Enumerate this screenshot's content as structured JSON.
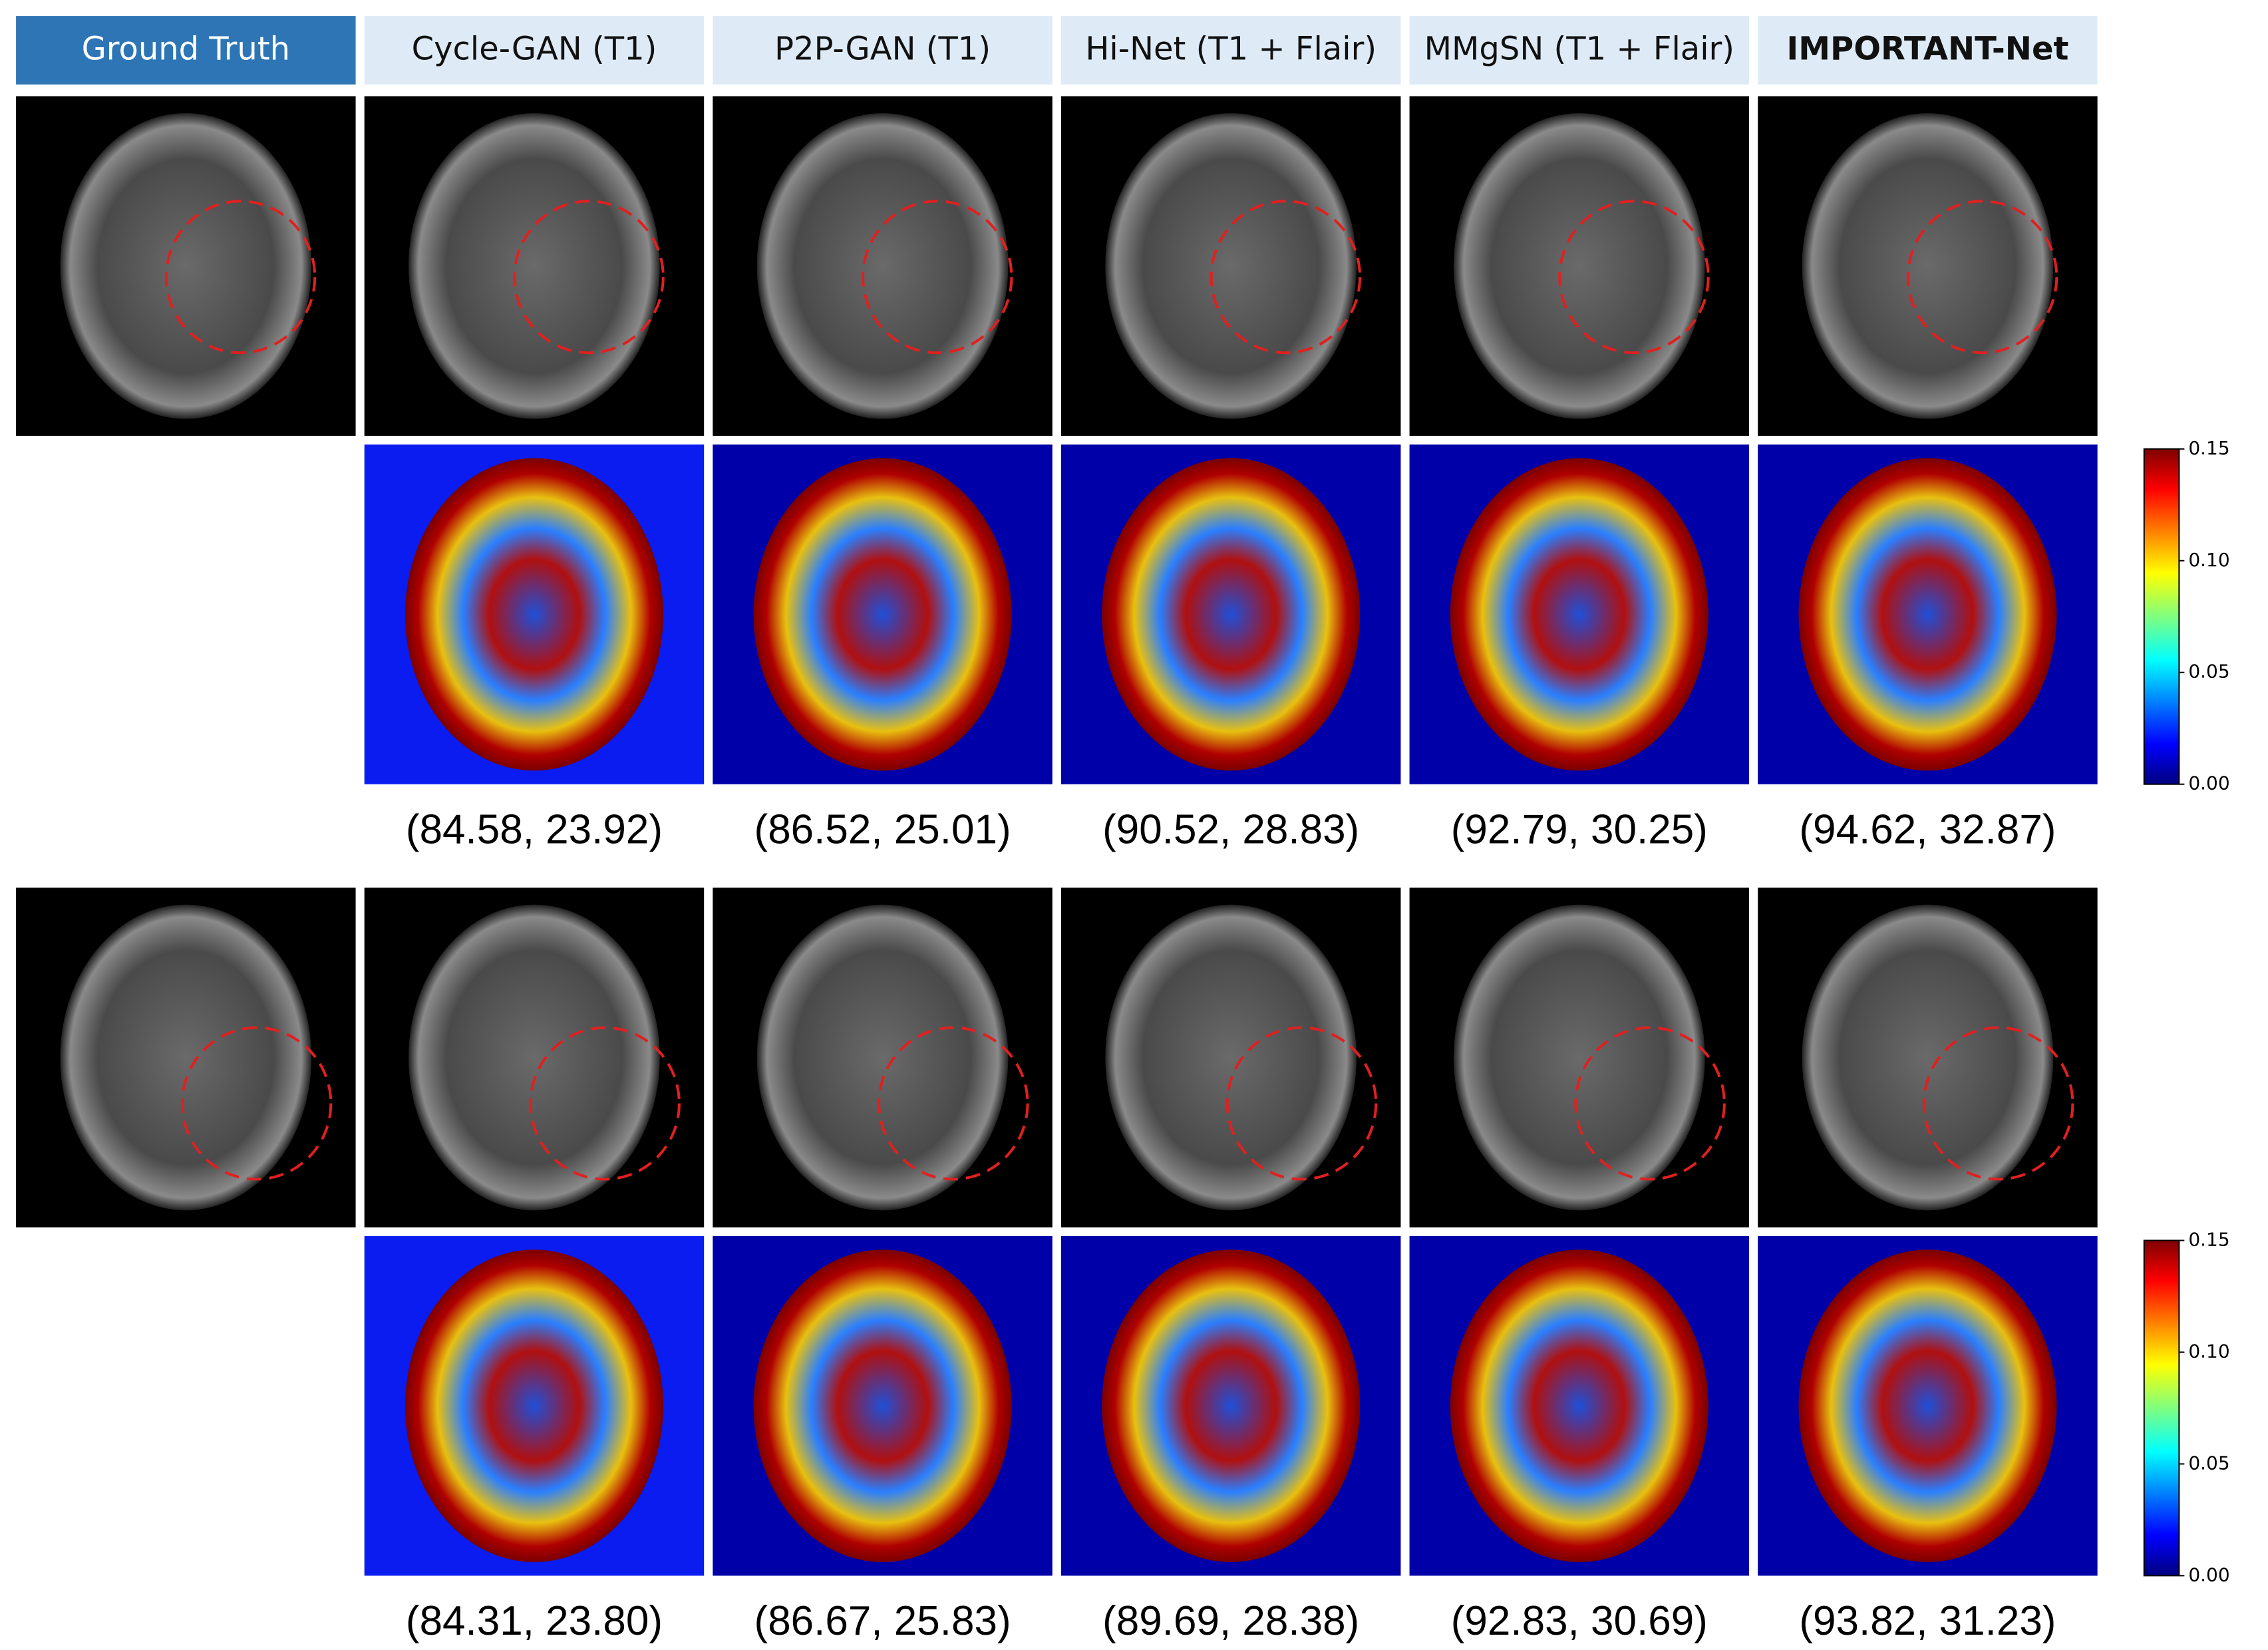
{
  "headers": [
    "Ground Truth",
    "Cycle-GAN (T1)",
    "P2P-GAN (T1)",
    "Hi-Net (T1 + Flair)",
    "MMgSN (T1 + Flair)",
    "IMPORTANT-Net"
  ],
  "cases": [
    {
      "metrics": [
        "(84.58, 23.92)",
        "(86.52, 25.01)",
        "(90.52, 28.83)",
        "(92.79, 30.25)",
        "(94.62, 32.87)"
      ],
      "colorbar_ticks": [
        "0.15",
        "0.10",
        "0.05",
        "0.00"
      ]
    },
    {
      "metrics": [
        "(84.31, 23.80)",
        "(86.67, 25.83)",
        "(89.69, 28.38)",
        "(92.83, 30.69)",
        "(93.82, 31.23)"
      ],
      "colorbar_ticks": [
        "0.15",
        "0.10",
        "0.05",
        "0.00"
      ]
    }
  ]
}
